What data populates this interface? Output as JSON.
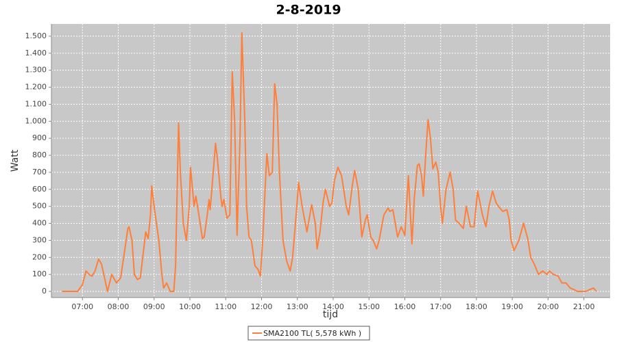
{
  "chart_data": {
    "type": "line",
    "title": "2-8-2019",
    "x_label": "tijd",
    "y_label": "Watt",
    "x": [
      "06:26",
      "06:52",
      "07:00",
      "07:06",
      "07:11",
      "07:16",
      "07:21",
      "07:27",
      "07:32",
      "07:37",
      "07:42",
      "07:49",
      "07:57",
      "08:04",
      "08:09",
      "08:16",
      "08:18",
      "08:23",
      "08:27",
      "08:32",
      "08:37",
      "08:41",
      "08:46",
      "08:50",
      "08:54",
      "08:56",
      "09:00",
      "09:08",
      "09:13",
      "09:16",
      "09:21",
      "09:27",
      "09:33",
      "09:36",
      "09:41",
      "09:44",
      "09:49",
      "09:54",
      "09:59",
      "10:01",
      "10:07",
      "10:10",
      "10:15",
      "10:21",
      "10:24",
      "10:29",
      "10:32",
      "10:34",
      "10:39",
      "10:43",
      "10:46",
      "10:52",
      "10:54",
      "10:57",
      "11:02",
      "11:07",
      "11:11",
      "11:15",
      "11:19",
      "11:24",
      "11:27",
      "11:32",
      "11:35",
      "11:39",
      "11:43",
      "11:49",
      "11:54",
      "11:58",
      "12:02",
      "12:06",
      "12:09",
      "12:13",
      "12:18",
      "12:22",
      "12:26",
      "12:30",
      "12:36",
      "12:42",
      "12:48",
      "12:52",
      "12:58",
      "13:02",
      "13:08",
      "13:16",
      "13:24",
      "13:30",
      "13:33",
      "13:38",
      "13:43",
      "13:47",
      "13:54",
      "13:58",
      "14:02",
      "14:08",
      "14:14",
      "14:22",
      "14:26",
      "14:32",
      "14:36",
      "14:42",
      "14:48",
      "14:54",
      "14:57",
      "15:03",
      "15:07",
      "15:13",
      "15:17",
      "15:25",
      "15:32",
      "15:35",
      "15:40",
      "15:48",
      "15:54",
      "16:00",
      "16:06",
      "16:12",
      "16:16",
      "16:21",
      "16:24",
      "16:28",
      "16:31",
      "16:35",
      "16:39",
      "16:43",
      "16:47",
      "16:52",
      "16:56",
      "17:00",
      "17:03",
      "17:09",
      "17:16",
      "17:21",
      "17:25",
      "17:31",
      "17:38",
      "17:43",
      "17:50",
      "17:56",
      "18:02",
      "18:10",
      "18:16",
      "18:21",
      "18:27",
      "18:33",
      "18:37",
      "18:44",
      "18:51",
      "18:55",
      "18:58",
      "19:03",
      "19:11",
      "19:19",
      "19:26",
      "19:31",
      "19:37",
      "19:44",
      "19:51",
      "19:58",
      "20:02",
      "20:09",
      "20:17",
      "20:23",
      "20:30",
      "20:37",
      "20:44",
      "20:49",
      "21:03",
      "21:16",
      "21:21"
    ],
    "series": [
      {
        "name": "SMA2100 TL( 5,578 kWh )",
        "color": "#ff7f3a",
        "values": [
          0,
          0,
          40,
          120,
          100,
          90,
          120,
          190,
          160,
          80,
          0,
          100,
          50,
          80,
          200,
          370,
          380,
          300,
          100,
          70,
          80,
          200,
          350,
          310,
          450,
          620,
          500,
          300,
          100,
          20,
          50,
          0,
          0,
          150,
          990,
          700,
          400,
          300,
          500,
          730,
          500,
          560,
          450,
          310,
          320,
          450,
          540,
          480,
          700,
          870,
          780,
          550,
          500,
          540,
          430,
          450,
          1290,
          1000,
          330,
          900,
          1520,
          1000,
          500,
          320,
          300,
          150,
          130,
          90,
          300,
          600,
          810,
          680,
          700,
          1220,
          1100,
          700,
          300,
          180,
          120,
          200,
          450,
          640,
          500,
          350,
          510,
          400,
          250,
          350,
          520,
          600,
          500,
          520,
          650,
          730,
          680,
          500,
          450,
          620,
          710,
          600,
          320,
          420,
          450,
          320,
          300,
          250,
          300,
          450,
          490,
          470,
          480,
          320,
          380,
          330,
          680,
          280,
          550,
          740,
          750,
          680,
          560,
          800,
          1010,
          900,
          720,
          760,
          700,
          500,
          400,
          600,
          700,
          600,
          420,
          400,
          370,
          500,
          380,
          380,
          590,
          450,
          380,
          500,
          590,
          520,
          500,
          470,
          480,
          420,
          300,
          240,
          300,
          400,
          310,
          200,
          160,
          100,
          120,
          100,
          120,
          100,
          90,
          50,
          50,
          20,
          10,
          0,
          0,
          20,
          0
        ]
      }
    ],
    "xlim": [
      "06:08",
      "21:44"
    ],
    "xticks": [
      "07:00",
      "08:00",
      "09:00",
      "10:00",
      "11:00",
      "12:00",
      "13:00",
      "14:00",
      "15:00",
      "16:00",
      "17:00",
      "18:00",
      "19:00",
      "20:00",
      "21:00"
    ],
    "ylim": [
      -36,
      1572
    ],
    "yticks": [
      0,
      100,
      200,
      300,
      400,
      500,
      600,
      700,
      800,
      900,
      {
        "value": 1000,
        "label": "1.000"
      },
      {
        "value": 1100,
        "label": "1.100"
      },
      {
        "value": 1200,
        "label": "1.200"
      },
      {
        "value": 1300,
        "label": "1.300"
      },
      {
        "value": 1400,
        "label": "1.400"
      },
      {
        "value": 1500,
        "label": "1.500"
      }
    ],
    "grid": true,
    "legend": "bottom"
  }
}
